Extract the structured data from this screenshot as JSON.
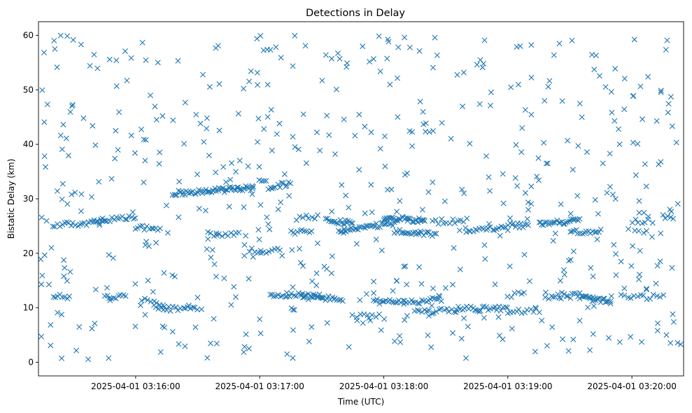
{
  "chart_data": {
    "type": "scatter",
    "title": "Detections in Delay",
    "xlabel": "Time (UTC)",
    "ylabel": "Bistatic Delay (km)",
    "x_unit": "UTC time",
    "x_range": [
      "2025-04-01 03:15:13",
      "2025-04-01 03:20:25"
    ],
    "ylim": [
      -2.5,
      62.5
    ],
    "x_ticks": [
      "2025-04-01 03:16:00",
      "2025-04-01 03:17:00",
      "2025-04-01 03:18:00",
      "2025-04-01 03:19:00",
      "2025-04-01 03:20:00"
    ],
    "y_ticks": [
      0,
      10,
      20,
      30,
      40,
      50,
      60
    ],
    "grid": false,
    "legend": "none",
    "marker": "x",
    "color": "#1f77b4",
    "series": [
      {
        "description": "detections (time, bistatic delay km); point count approximate",
        "tracks": [
          {
            "from": [
              "2025-04-01 03:15:20",
              12.0
            ],
            "to": [
              "2025-04-01 03:15:28",
              12.0
            ],
            "n": 8
          },
          {
            "from": [
              "2025-04-01 03:15:20",
              25.2
            ],
            "to": [
              "2025-04-01 03:15:45",
              25.6
            ],
            "n": 24
          },
          {
            "from": [
              "2025-04-01 03:15:40",
              25.8
            ],
            "to": [
              "2025-04-01 03:16:00",
              26.6
            ],
            "n": 20
          },
          {
            "from": [
              "2025-04-01 03:15:45",
              12.0
            ],
            "to": [
              "2025-04-01 03:15:55",
              12.0
            ],
            "n": 10
          },
          {
            "from": [
              "2025-04-01 03:16:00",
              24.8
            ],
            "to": [
              "2025-04-01 03:16:12",
              24.2
            ],
            "n": 12
          },
          {
            "from": [
              "2025-04-01 03:16:03",
              11.5
            ],
            "to": [
              "2025-04-01 03:16:13",
              10.5
            ],
            "n": 8
          },
          {
            "from": [
              "2025-04-01 03:16:10",
              9.9
            ],
            "to": [
              "2025-04-01 03:16:30",
              9.8
            ],
            "n": 18
          },
          {
            "from": [
              "2025-04-01 03:16:18",
              31.0
            ],
            "to": [
              "2025-04-01 03:16:57",
              32.0
            ],
            "n": 60
          },
          {
            "from": [
              "2025-04-01 03:16:35",
              23.5
            ],
            "to": [
              "2025-04-01 03:16:50",
              23.5
            ],
            "n": 12
          },
          {
            "from": [
              "2025-04-01 03:16:55",
              20.5
            ],
            "to": [
              "2025-04-01 03:17:10",
              20.5
            ],
            "n": 12
          },
          {
            "from": [
              "2025-04-01 03:17:00",
              33.3
            ],
            "to": [
              "2025-04-01 03:17:03",
              33.7
            ],
            "n": 4
          },
          {
            "from": [
              "2025-04-01 03:17:05",
              32.3
            ],
            "to": [
              "2025-04-01 03:17:15",
              32.7
            ],
            "n": 12
          },
          {
            "from": [
              "2025-04-01 03:17:05",
              12.5
            ],
            "to": [
              "2025-04-01 03:17:30",
              12.2
            ],
            "n": 25
          },
          {
            "from": [
              "2025-04-01 03:17:15",
              24.0
            ],
            "to": [
              "2025-04-01 03:17:25",
              24.0
            ],
            "n": 10
          },
          {
            "from": [
              "2025-04-01 03:17:18",
              26.5
            ],
            "to": [
              "2025-04-01 03:17:28",
              26.7
            ],
            "n": 8
          },
          {
            "from": [
              "2025-04-01 03:17:20",
              12.0
            ],
            "to": [
              "2025-04-01 03:17:40",
              11.6
            ],
            "n": 25
          },
          {
            "from": [
              "2025-04-01 03:17:32",
              26.0
            ],
            "to": [
              "2025-04-01 03:17:45",
              25.5
            ],
            "n": 18
          },
          {
            "from": [
              "2025-04-01 03:17:38",
              24.0
            ],
            "to": [
              "2025-04-01 03:18:05",
              25.5
            ],
            "n": 35
          },
          {
            "from": [
              "2025-04-01 03:17:55",
              11.2
            ],
            "to": [
              "2025-04-01 03:18:10",
              11.0
            ],
            "n": 18
          },
          {
            "from": [
              "2025-04-01 03:17:45",
              8.3
            ],
            "to": [
              "2025-04-01 03:17:58",
              8.5
            ],
            "n": 8
          },
          {
            "from": [
              "2025-04-01 03:18:00",
              26.5
            ],
            "to": [
              "2025-04-01 03:18:20",
              26.0
            ],
            "n": 35
          },
          {
            "from": [
              "2025-04-01 03:18:05",
              24.0
            ],
            "to": [
              "2025-04-01 03:18:25",
              23.5
            ],
            "n": 25
          },
          {
            "from": [
              "2025-04-01 03:18:10",
              11.0
            ],
            "to": [
              "2025-04-01 03:18:28",
              11.5
            ],
            "n": 18
          },
          {
            "from": [
              "2025-04-01 03:18:15",
              9.2
            ],
            "to": [
              "2025-04-01 03:18:35",
              9.6
            ],
            "n": 18
          },
          {
            "from": [
              "2025-04-01 03:18:25",
              25.8
            ],
            "to": [
              "2025-04-01 03:18:40",
              26.0
            ],
            "n": 12
          },
          {
            "from": [
              "2025-04-01 03:18:35",
              9.8
            ],
            "to": [
              "2025-04-01 03:19:00",
              9.9
            ],
            "n": 25
          },
          {
            "from": [
              "2025-04-01 03:18:40",
              24.3
            ],
            "to": [
              "2025-04-01 03:19:00",
              24.6
            ],
            "n": 20
          },
          {
            "from": [
              "2025-04-01 03:19:00",
              12.3
            ],
            "to": [
              "2025-04-01 03:19:08",
              12.5
            ],
            "n": 6
          },
          {
            "from": [
              "2025-04-01 03:19:00",
              25.2
            ],
            "to": [
              "2025-04-01 03:19:10",
              25.0
            ],
            "n": 12
          },
          {
            "from": [
              "2025-04-01 03:19:00",
              9.2
            ],
            "to": [
              "2025-04-01 03:19:15",
              9.5
            ],
            "n": 12
          },
          {
            "from": [
              "2025-04-01 03:19:15",
              25.5
            ],
            "to": [
              "2025-04-01 03:19:35",
              26.0
            ],
            "n": 28
          },
          {
            "from": [
              "2025-04-01 03:19:20",
              12.0
            ],
            "to": [
              "2025-04-01 03:19:35",
              12.3
            ],
            "n": 16
          },
          {
            "from": [
              "2025-04-01 03:19:30",
              24.0
            ],
            "to": [
              "2025-04-01 03:19:45",
              24.0
            ],
            "n": 16
          },
          {
            "from": [
              "2025-04-01 03:19:35",
              12.0
            ],
            "to": [
              "2025-04-01 03:19:50",
              11.0
            ],
            "n": 25
          },
          {
            "from": [
              "2025-04-01 03:19:55",
              12.0
            ],
            "to": [
              "2025-04-01 03:20:15",
              12.0
            ],
            "n": 14
          },
          {
            "from": [
              "2025-04-01 03:20:00",
              25.8
            ],
            "to": [
              "2025-04-01 03:20:08",
              25.8
            ],
            "n": 6
          },
          {
            "from": [
              "2025-04-01 03:20:15",
              26.8
            ],
            "to": [
              "2025-04-01 03:20:20",
              26.8
            ],
            "n": 5
          }
        ],
        "scattered": {
          "x_range": [
            "2025-04-01 03:15:13",
            "2025-04-01 03:20:25"
          ],
          "y_range": [
            0.5,
            60
          ],
          "n": 560
        }
      }
    ]
  }
}
